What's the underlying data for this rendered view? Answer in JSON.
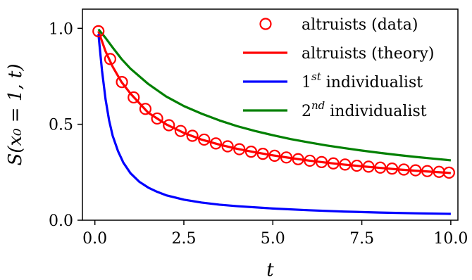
{
  "chart_data": {
    "type": "line",
    "xlabel": "t",
    "ylabel": "S(x₀ = 1, t)",
    "xlim": [
      -0.35,
      10.2
    ],
    "ylim": [
      0.0,
      1.1
    ],
    "xticks": [
      0.0,
      2.5,
      5.0,
      7.5,
      10.0
    ],
    "xtick_labels": [
      "0.0",
      "2.5",
      "5.0",
      "7.5",
      "10.0"
    ],
    "yticks": [
      0.0,
      0.5,
      1.0
    ],
    "ytick_labels": [
      "0.0",
      "0.5",
      "1.0"
    ],
    "grid": false,
    "legend_position": "top-right",
    "series": [
      {
        "name": "altruists (data)",
        "kind": "markers",
        "color": "#ff0000",
        "x": [
          0.1,
          0.43,
          0.76,
          1.09,
          1.42,
          1.75,
          2.08,
          2.41,
          2.74,
          3.07,
          3.4,
          3.73,
          4.06,
          4.39,
          4.72,
          5.05,
          5.38,
          5.71,
          6.04,
          6.37,
          6.7,
          7.03,
          7.36,
          7.69,
          8.02,
          8.35,
          8.68,
          9.01,
          9.34,
          9.67,
          9.95
        ],
        "y": [
          0.985,
          0.84,
          0.72,
          0.64,
          0.58,
          0.53,
          0.495,
          0.465,
          0.44,
          0.42,
          0.4,
          0.385,
          0.37,
          0.357,
          0.346,
          0.336,
          0.327,
          0.318,
          0.31,
          0.303,
          0.296,
          0.29,
          0.284,
          0.279,
          0.274,
          0.269,
          0.264,
          0.26,
          0.256,
          0.252,
          0.248
        ]
      },
      {
        "name": "altruists (theory)",
        "kind": "line",
        "color": "#ff0000",
        "x": [
          0.1,
          0.3,
          0.5,
          0.75,
          1.0,
          1.5,
          2.0,
          2.5,
          3.0,
          3.5,
          4.0,
          4.5,
          5.0,
          5.5,
          6.0,
          6.5,
          7.0,
          7.5,
          8.0,
          8.5,
          9.0,
          9.5,
          10.0
        ],
        "y": [
          0.985,
          0.88,
          0.8,
          0.72,
          0.66,
          0.56,
          0.5,
          0.455,
          0.42,
          0.394,
          0.372,
          0.354,
          0.338,
          0.324,
          0.311,
          0.3,
          0.29,
          0.281,
          0.273,
          0.265,
          0.258,
          0.252,
          0.246
        ]
      },
      {
        "name": "1st individualist",
        "kind": "line",
        "color": "#0000ff",
        "x": [
          0.1,
          0.2,
          0.3,
          0.4,
          0.5,
          0.65,
          0.8,
          1.0,
          1.25,
          1.5,
          1.75,
          2.0,
          2.5,
          3.0,
          3.5,
          4.0,
          5.0,
          6.0,
          7.0,
          8.0,
          9.0,
          10.0
        ],
        "y": [
          0.97,
          0.78,
          0.63,
          0.52,
          0.44,
          0.36,
          0.3,
          0.245,
          0.2,
          0.17,
          0.148,
          0.13,
          0.107,
          0.092,
          0.081,
          0.073,
          0.061,
          0.052,
          0.045,
          0.04,
          0.036,
          0.033
        ]
      },
      {
        "name": "2nd individualist",
        "kind": "line",
        "color": "#008000",
        "x": [
          0.1,
          0.3,
          0.5,
          0.75,
          1.0,
          1.5,
          2.0,
          2.5,
          3.0,
          3.5,
          4.0,
          4.5,
          5.0,
          5.5,
          6.0,
          6.5,
          7.0,
          7.5,
          8.0,
          8.5,
          9.0,
          9.5,
          10.0
        ],
        "y": [
          0.995,
          0.95,
          0.9,
          0.84,
          0.79,
          0.71,
          0.645,
          0.595,
          0.555,
          0.52,
          0.49,
          0.465,
          0.443,
          0.423,
          0.406,
          0.39,
          0.376,
          0.363,
          0.351,
          0.34,
          0.33,
          0.321,
          0.312
        ]
      }
    ],
    "legend": [
      {
        "label": "altruists (data)",
        "kind": "marker",
        "color": "#ff0000"
      },
      {
        "label": "altruists (theory)",
        "kind": "line",
        "color": "#ff0000"
      },
      {
        "label_base": "1",
        "label_sup": "st",
        "label_rest": " individualist",
        "kind": "line",
        "color": "#0000ff"
      },
      {
        "label_base": "2",
        "label_sup": "nd",
        "label_rest": " individualist",
        "kind": "line",
        "color": "#008000"
      }
    ]
  }
}
